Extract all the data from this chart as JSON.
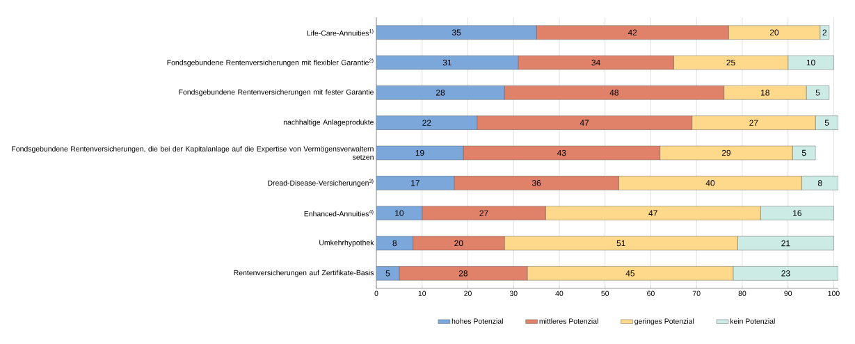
{
  "chart_data": {
    "type": "bar",
    "orientation": "horizontal",
    "stacked": true,
    "categories": [
      "Life-Care-Annuities$^{1)}$",
      "Fondsgebundene Rentenversicherungen mit flexibler Garantie$^{2)}$",
      "Fondsgebundene Rentenversicherungen mit fester Garantie",
      "nachhaltige Anlageprodukte",
      "Fondsgebundene Rentenversicherungen, die bei der Kapitalanlage auf die Expertise von Vermögensverwaltern setzen",
      "Dread-Disease-Versicherungen$^{3)}$",
      "Enhanced-Annuities$^{4)}$",
      "Umkehrhypothek",
      "Rentenversicherungen auf Zertifikate-Basis"
    ],
    "series": [
      {
        "name": "hohes  Potenzial",
        "color": "#7ba7db",
        "values": [
          35,
          31,
          28,
          22,
          19,
          17,
          10,
          8,
          5
        ]
      },
      {
        "name": "mittleres Potenzial",
        "color": "#e0826a",
        "values": [
          42,
          34,
          48,
          47,
          43,
          36,
          27,
          20,
          28
        ]
      },
      {
        "name": "geringes Potenzial",
        "color": "#fed98b",
        "values": [
          20,
          25,
          18,
          27,
          29,
          40,
          47,
          51,
          45
        ]
      },
      {
        "name": "kein Potenzial",
        "color": "#cdebe5",
        "values": [
          2,
          10,
          5,
          5,
          5,
          8,
          16,
          21,
          23
        ]
      }
    ],
    "xlim": [
      0,
      101
    ],
    "xticks": [
      0,
      10,
      20,
      30,
      40,
      50,
      60,
      70,
      80,
      90,
      100
    ],
    "grid": "x",
    "legend": "bottom",
    "data_labels": true
  }
}
